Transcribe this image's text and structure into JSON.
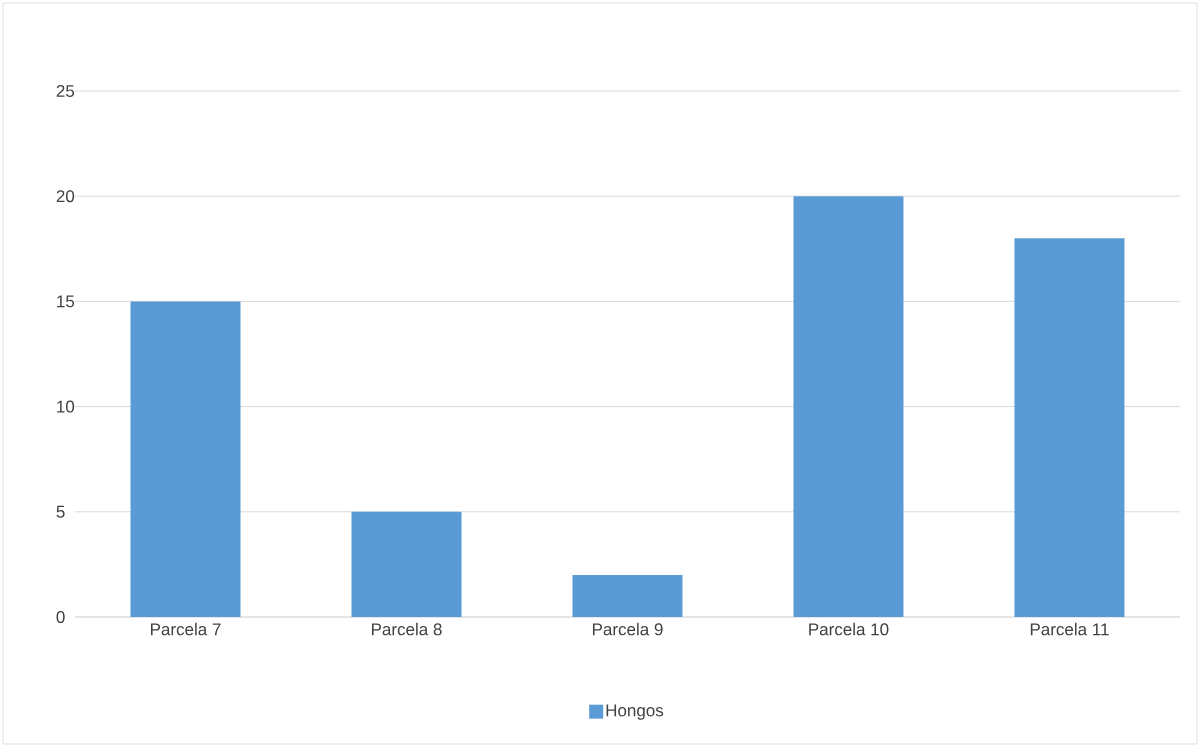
{
  "chart_data": {
    "type": "bar",
    "categories": [
      "Parcela 7",
      "Parcela 8",
      "Parcela 9",
      "Parcela 10",
      "Parcela 11"
    ],
    "series": [
      {
        "name": "Hongos",
        "color": "#5b9bd5",
        "values": [
          15,
          5,
          2,
          20,
          18
        ]
      }
    ],
    "ylim": [
      0,
      25
    ],
    "yticks": [
      0,
      5,
      10,
      15,
      20,
      25
    ],
    "grid": "y",
    "legend": "bottom"
  }
}
